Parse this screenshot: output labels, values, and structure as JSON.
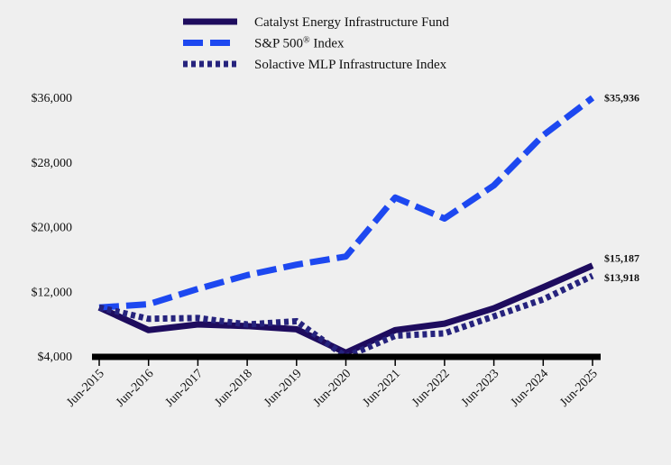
{
  "chart_data": {
    "type": "line",
    "categories": [
      "Jun-2015",
      "Jun-2016",
      "Jun-2017",
      "Jun-2018",
      "Jun-2019",
      "Jun-2020",
      "Jun-2021",
      "Jun-2022",
      "Jun-2023",
      "Jun-2024",
      "Jun-2025"
    ],
    "series": [
      {
        "name": "Catalyst Energy Infrastructure Fund",
        "color": "#1e0c5e",
        "style": "solid",
        "values": [
          10000,
          7200,
          7900,
          7700,
          7300,
          4400,
          7200,
          8000,
          9900,
          12500,
          15187
        ],
        "end_label": "$15,187"
      },
      {
        "name": "S&P 500",
        "superscript": "®",
        "name_suffix": " Index",
        "color": "#1d48f0",
        "style": "dashed",
        "values": [
          10000,
          10400,
          12300,
          14000,
          15300,
          16300,
          23600,
          21000,
          25100,
          31300,
          35936
        ],
        "end_label": "$35,936"
      },
      {
        "name": "Solactive MLP Infrastructure Index",
        "color": "#26237d",
        "style": "dotted",
        "values": [
          10000,
          8600,
          8700,
          7900,
          8300,
          3900,
          6500,
          6800,
          8900,
          11000,
          13918
        ],
        "end_label": "$13,918"
      }
    ],
    "title": "",
    "xlabel": "",
    "ylabel": "",
    "ylim": [
      4000,
      36000
    ],
    "yticks": [
      4000,
      12000,
      20000,
      28000,
      36000
    ],
    "ytick_labels": [
      "$4,000",
      "$12,000",
      "$20,000",
      "$28,000",
      "$36,000"
    ],
    "grid": false,
    "legend_position": "top-center"
  }
}
